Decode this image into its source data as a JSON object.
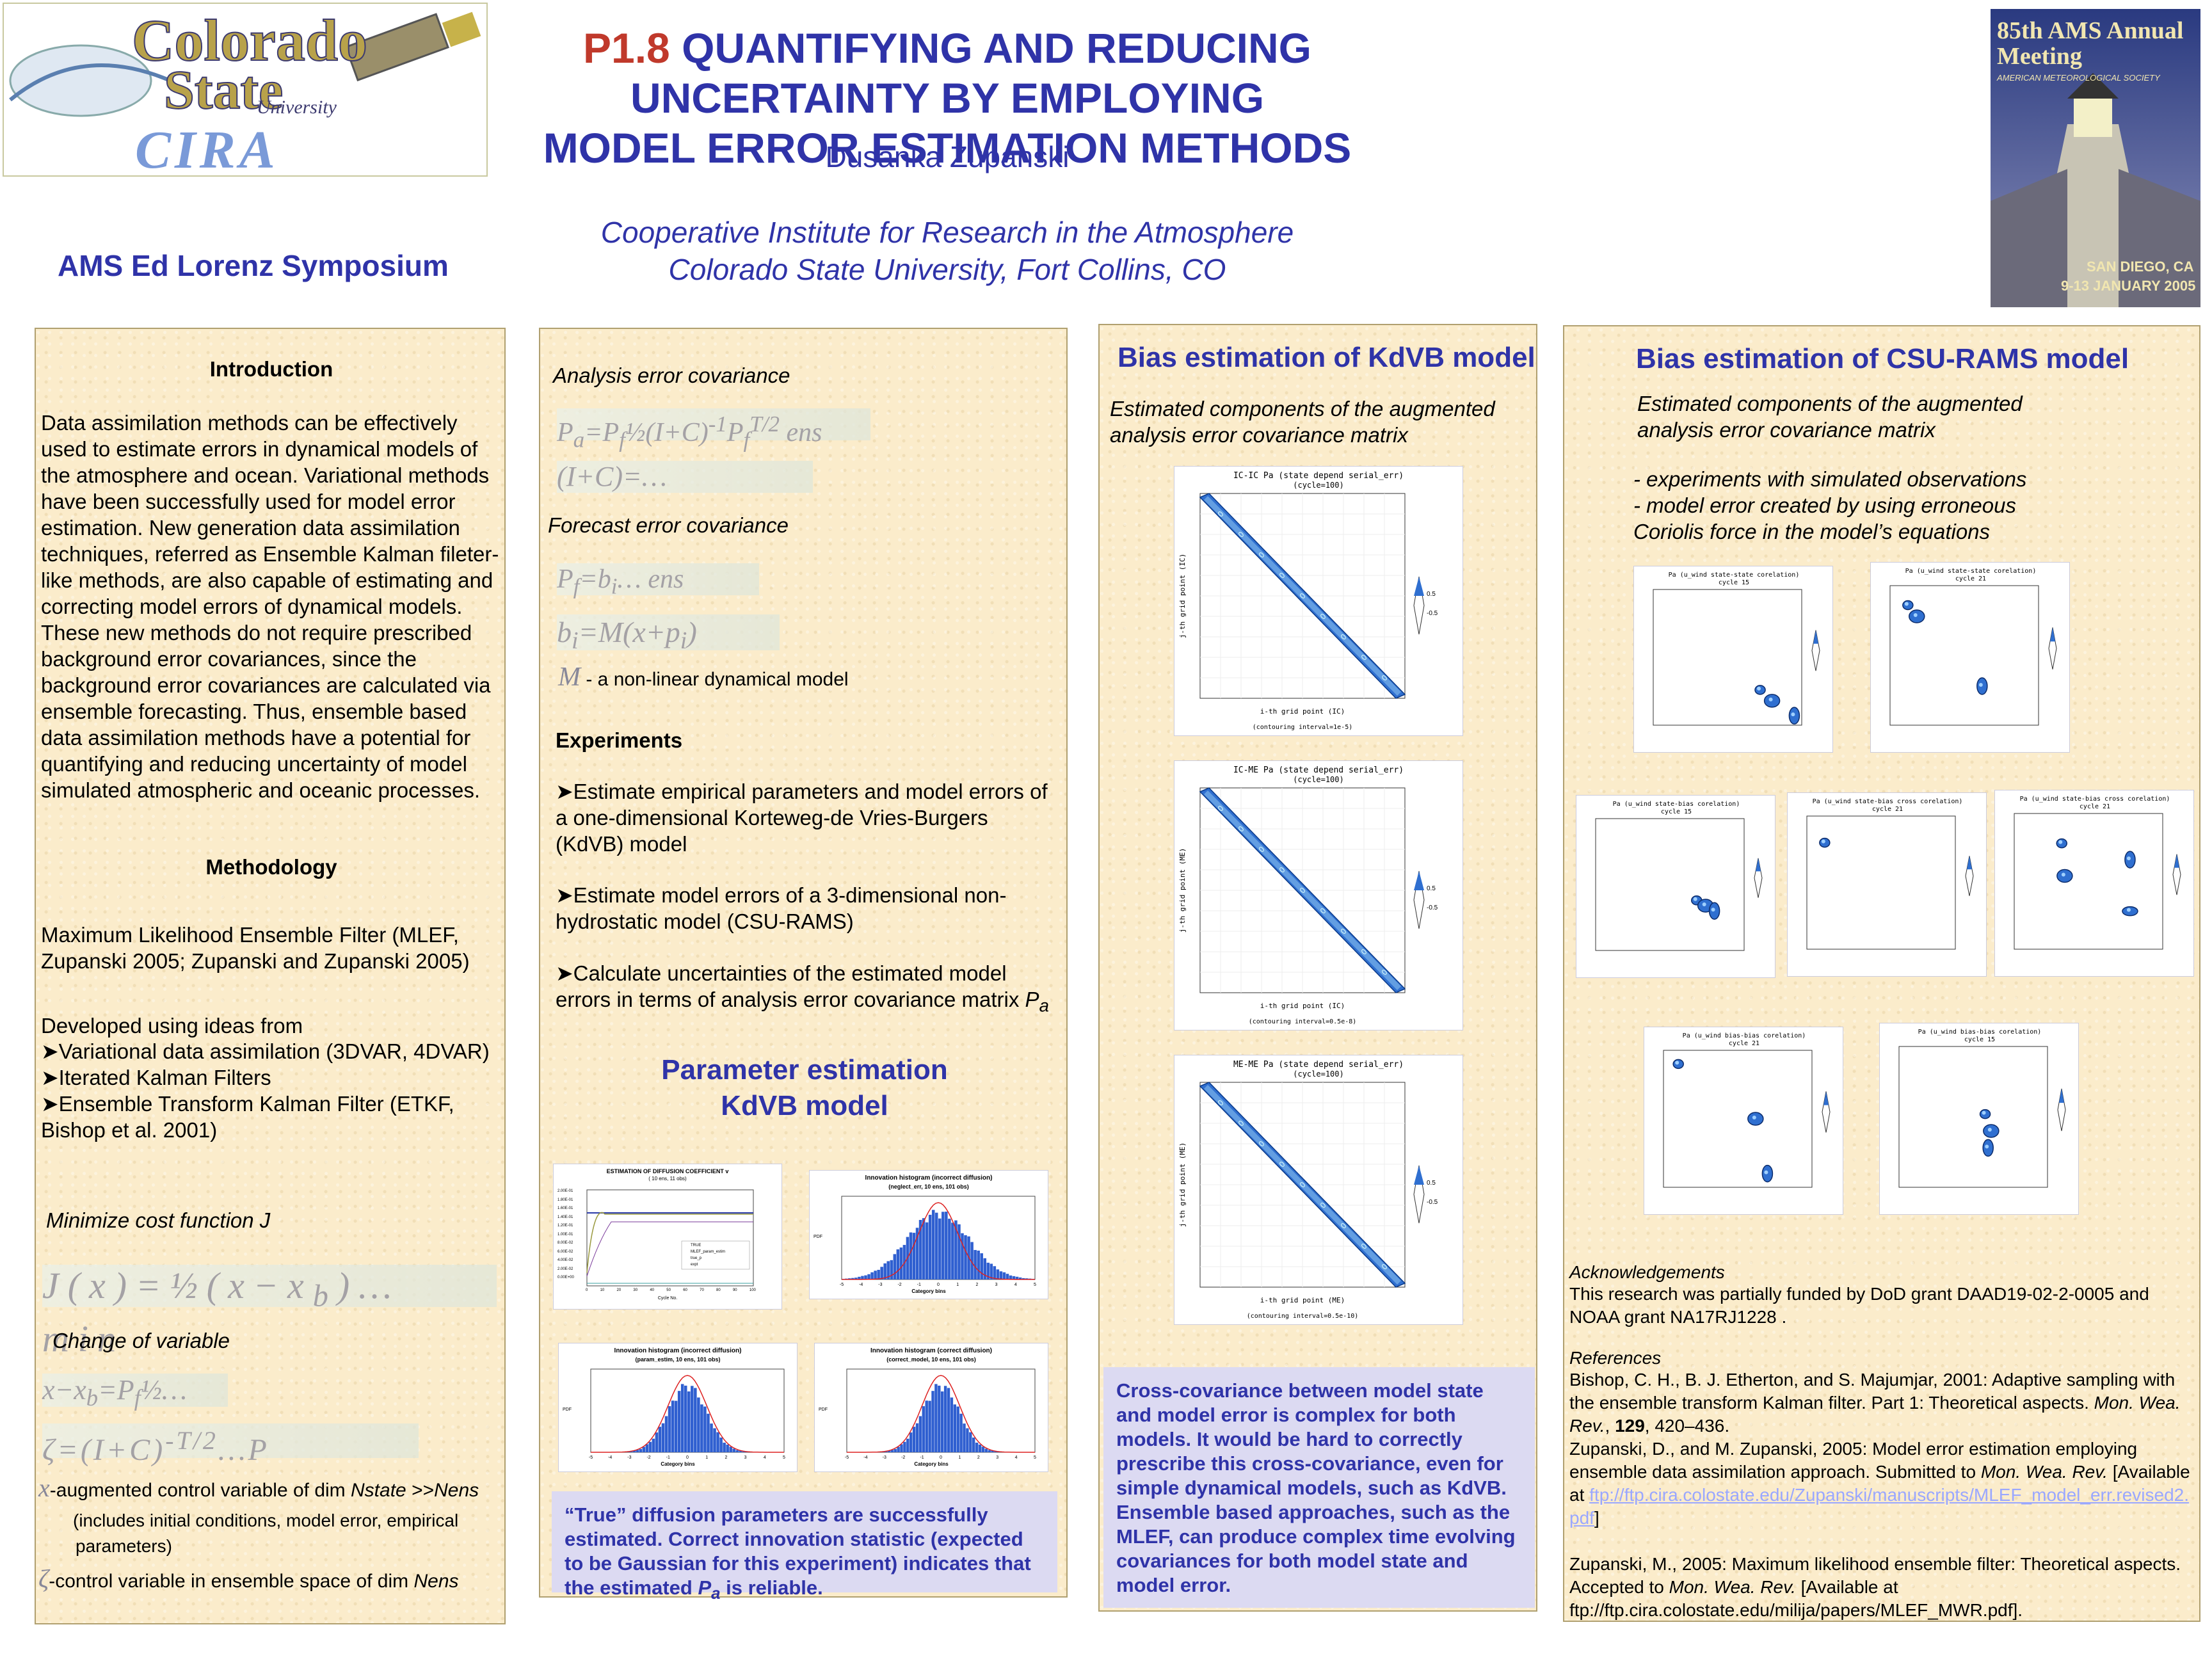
{
  "header": {
    "number": "P1.8",
    "title_line1": "QUANTIFYING AND REDUCING UNCERTAINTY BY EMPLOYING",
    "title_line2": "MODEL ERROR ESTIMATION METHODS",
    "author": "Dusanka Zupanski",
    "affiliation1": "Cooperative Institute for Research in the Atmosphere",
    "affiliation2": "Colorado State University, Fort Collins, CO",
    "symposium": "AMS Ed Lorenz Symposium"
  },
  "logo_left": {
    "line1": "Colorado",
    "line2": "State",
    "line3": "University",
    "line4": "CIRA"
  },
  "logo_right": {
    "line1": "85th AMS Annual Meeting",
    "line2": "AMERICAN METEOROLOGICAL SOCIETY",
    "line3": "SAN DIEGO, CA",
    "line4": "9-13 JANUARY 2005"
  },
  "col1": {
    "intro_heading": "Introduction",
    "intro_text": "Data assimilation methods can be effectively used to estimate errors in dynamical models of the atmosphere and ocean. Variational methods have been successfully used for model error estimation. New generation data assimilation techniques, referred as Ensemble Kalman fileter-like methods, are also capable of estimating and correcting model errors of dynamical models. These new methods do not require prescribed background error covariances, since the background error covariances are calculated via ensemble forecasting. Thus, ensemble based data assimilation methods have a potential for quantifying and reducing uncertainty of model simulated atmospheric and oceanic processes.",
    "method_heading": "Methodology",
    "mlef_text": "Maximum Likelihood Ensemble Filter (MLEF, Zupanski 2005; Zupanski and Zupanski 2005)",
    "ideas_text": "Developed using ideas from",
    "ideas": [
      "Variational data assimilation (3DVAR, 4DVAR)",
      "Iterated Kalman Filters",
      "Ensemble Transform Kalman Filter (ETKF, Bishop et al. 2001)"
    ],
    "minimize": "Minimize cost function J",
    "change_var": "Change of variable",
    "x_desc_a": "-augmented control variable of dim ",
    "x_desc_nstate": "Nstate",
    "x_desc_gt": " >>",
    "x_desc_nens": "Nens",
    "x_desc_b": "(includes initial conditions, model error, empirical",
    "x_desc_c": "parameters)",
    "zeta_desc_a": "-control variable in ensemble space of dim ",
    "zeta_desc_nens": "Nens"
  },
  "col2": {
    "analysis_cov": "Analysis error covariance",
    "forecast_cov": "Forecast error covariance",
    "model_desc": "- a non-linear dynamical model",
    "experiments_heading": "Experiments",
    "exp": [
      "Estimate empirical parameters and model errors of a one-dimensional Korteweg-de Vries-Burgers (KdVB) model",
      "Estimate model errors of a 3-dimensional non-hydrostatic model (CSU-RAMS)",
      "Calculate uncertainties of the estimated model errors in terms of analysis error covariance matrix"
    ],
    "pa_symbol": "P",
    "pa_sub": "a",
    "param_heading1": "Parameter estimation",
    "param_heading2": "KdVB model",
    "fig1_title": "ESTIMATION OF DIFFUSION COEFFICIENT v",
    "fig1_sub": "( 10 ens, 11 obs)",
    "fig1_xlabel": "Cycle No.",
    "fig1_legend": [
      "TRUE",
      "MLEF_param_estim",
      "true_p",
      "expt"
    ],
    "fig1_yticks": [
      "2.00E-01",
      "1.80E-01",
      "1.60E-01",
      "1.40E-01",
      "1.20E-01",
      "1.00E-01",
      "8.00E-02",
      "6.00E-02",
      "4.00E-02",
      "2.00E-02",
      "0.00E+00"
    ],
    "fig1_xticks": [
      "0",
      "10",
      "20",
      "30",
      "40",
      "50",
      "60",
      "70",
      "80",
      "90",
      "100"
    ],
    "fig2_title": "Innovation histogram (incorrect diffusion)",
    "fig2_sub": "(neglect_err, 10 ens, 101 obs)",
    "fig3_title": "Innovation histogram (incorrect diffusion)",
    "fig3_sub": "(param_estim, 10 ens, 101 obs)",
    "fig4_title": "Innovation histogram (correct diffusion)",
    "fig4_sub": "(correct_model, 10 ens, 101 obs)",
    "hist_xlabel": "Category bins",
    "hist_ylabel": "PDF",
    "hist_xticks": [
      "-5",
      "-4",
      "-3",
      "-2",
      "-1",
      "0",
      "1",
      "2",
      "3",
      "4",
      "5"
    ],
    "caption_a": "“True” diffusion parameters are successfully estimated. Correct innovation statistic (expected to be Gaussian for this experiment) indicates that the estimated ",
    "caption_p": "P",
    "caption_sub": "a",
    "caption_b": " is reliable."
  },
  "col3": {
    "heading": "Bias estimation of KdVB model",
    "subheading": "Estimated components of the augmented analysis error covariance matrix",
    "figs": [
      {
        "title": "IC-IC Pa (state depend serial_err)",
        "sub": "(cycle=100)",
        "xlabel": "i-th grid point (IC)",
        "ylabel": "j-th grid point (IC)",
        "contour": "(contouring interval=1e-5)"
      },
      {
        "title": "IC-ME Pa (state depend serial_err)",
        "sub": "(cycle=100)",
        "xlabel": "i-th grid point (IC)",
        "ylabel": "j-th grid point (ME)",
        "contour": "(contouring interval=0.5e-8)"
      },
      {
        "title": "ME-ME Pa (state depend serial_err)",
        "sub": "(cycle=100)",
        "xlabel": "i-th grid point (ME)",
        "ylabel": "j-th grid point (ME)",
        "contour": "(contouring interval=0.5e-10)"
      }
    ],
    "legend_hi": "0.5",
    "legend_lo": "-0.5",
    "caption": "Cross-covariance between model state and model error is complex for both models.  It would be hard to correctly prescribe this cross-covariance, even for simple dynamical models, such as KdVB. Ensemble based approaches, such as the MLEF, can produce complex time evolving covariances for both model state and model error."
  },
  "col4": {
    "heading": "Bias estimation of CSU-RAMS model",
    "subheading": "Estimated components of the augmented analysis error covariance matrix",
    "bullets": [
      "- experiments with simulated observations",
      "- model error created by using erroneous",
      "Coriolis force in the model’s equations"
    ],
    "figs": [
      {
        "title": "Pa (u_wind state-state corelation)",
        "sub": "cycle 15"
      },
      {
        "title": "Pa (u_wind state-state corelation)",
        "sub": "cycle 21"
      },
      {
        "title": "Pa (u_wind state-bias corelation)",
        "sub": "cycle 15"
      },
      {
        "title": "Pa (u_wind state-bias cross corelation)",
        "sub": "cycle 21"
      },
      {
        "title": "Pa (u_wind state-bias cross corelation)",
        "sub": "cycle 21"
      },
      {
        "title": "Pa (u_wind bias-bias corelation)",
        "sub": "cycle 21"
      },
      {
        "title": "Pa (u_wind bias-bias corelation)",
        "sub": "cycle 15"
      }
    ],
    "ack_heading": "Acknowledgements",
    "ack_text": "This research was partially funded by DoD grant DAAD19-02-2-0005 and NOAA grant NA17RJ1228 .",
    "refs_heading": "References",
    "ref1_a": "Bishop, C. H., B. J. Etherton, and S. Majumjar, 2001: Adaptive sampling with the ensemble transform Kalman filter. Part      1: Theoretical aspects. ",
    "ref1_j": "Mon. Wea. Rev.",
    "ref1_v": "129",
    "ref1_b": ", 420–436.",
    "ref2_a": "Zupanski, D., and M. Zupanski, 2005: Model error estimation employing ensemble data assimilation approach. Submitted to ",
    "ref2_j": "Mon. Wea. Rev.",
    "ref2_b": " [Available at ",
    "ref2_link": "ftp://ftp.cira.colostate.edu/Zupanski/manuscripts/MLEF_model_err.revised2.pdf",
    "ref2_c": "]",
    "ref3_a": "Zupanski, M., 2005: Maximum likelihood ensemble filter: Theoretical aspects. Accepted to ",
    "ref3_j": "Mon. Wea. Rev.",
    "ref3_b": "  [Available at ftp://ftp.cira.colostate.edu/milija/papers/MLEF_MWR.pdf]."
  },
  "colors": {
    "title_blue": "#2f33a8",
    "title_red": "#c0392b",
    "panel_bg": "#fbeccb",
    "caption_bg": "#dcdaf2",
    "contour_blue": "#1f5fbf"
  }
}
